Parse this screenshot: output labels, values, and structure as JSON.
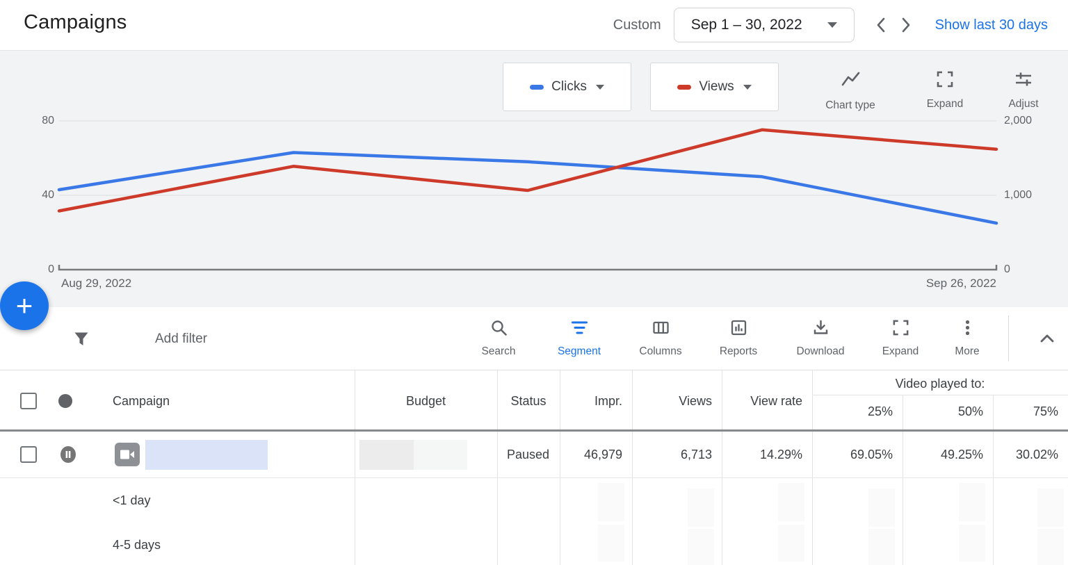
{
  "header": {
    "title": "Campaigns",
    "range_type": "Custom",
    "date_range": "Sep 1 – 30, 2022",
    "show_last": "Show last 30 days"
  },
  "chart": {
    "metric_selectors": [
      {
        "label": "Clicks",
        "color": "#3b78e7"
      },
      {
        "label": "Views",
        "color": "#cd3a2a"
      }
    ],
    "tools": [
      {
        "label": "Chart type"
      },
      {
        "label": "Expand"
      },
      {
        "label": "Adjust"
      }
    ],
    "left_axis": [
      "80",
      "40",
      "0"
    ],
    "right_axis": [
      "2,000",
      "1,000",
      "0"
    ],
    "x_start_label": "Aug 29, 2022",
    "x_end_label": "Sep 26, 2022"
  },
  "chart_data": {
    "type": "line",
    "x": [
      "Aug 29, 2022",
      "Sep 5, 2022",
      "Sep 12, 2022",
      "Sep 19, 2022",
      "Sep 26, 2022"
    ],
    "series": [
      {
        "name": "Clicks",
        "axis": "left",
        "color": "#3b78e7",
        "values": [
          43,
          63,
          58,
          50,
          25
        ]
      },
      {
        "name": "Views",
        "axis": "right",
        "color": "#cd3a2a",
        "values": [
          790,
          1390,
          1065,
          1880,
          1620
        ]
      }
    ],
    "left_ylim": [
      0,
      80
    ],
    "right_ylim": [
      0,
      2000
    ],
    "left_ticks": [
      0,
      40,
      80
    ],
    "right_ticks": [
      0,
      1000,
      2000
    ],
    "grid": "horizontal",
    "legend_position": "top"
  },
  "fab": {
    "label": "+"
  },
  "toolbar": {
    "add_filter": "Add filter",
    "buttons": [
      {
        "label": "Search"
      },
      {
        "label": "Segment",
        "active": true
      },
      {
        "label": "Columns"
      },
      {
        "label": "Reports"
      },
      {
        "label": "Download"
      },
      {
        "label": "Expand"
      },
      {
        "label": "More"
      }
    ]
  },
  "table": {
    "columns": [
      "Campaign",
      "Budget",
      "Status",
      "Impr.",
      "Views",
      "View rate",
      "25%",
      "50%",
      "75%"
    ],
    "group_header": "Video played to:",
    "row": {
      "status": "Paused",
      "impr": "46,979",
      "views": "6,713",
      "view_rate": "14.29%",
      "p25": "69.05%",
      "p50": "49.25%",
      "p75": "30.02%"
    },
    "segments": [
      "<1 day",
      "4-5 days"
    ]
  },
  "colors": {
    "accent": "#1a73e8",
    "clicks_line": "#3b78e7",
    "views_line": "#cd3a2a",
    "chart_bg": "#f1f3f4"
  }
}
